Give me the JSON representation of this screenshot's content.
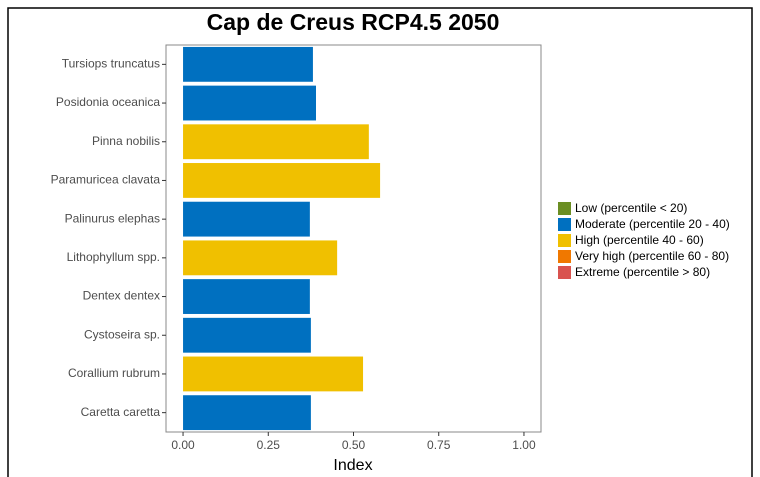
{
  "chart_data": {
    "type": "bar",
    "orientation": "horizontal",
    "title": "Cap de Creus RCP4.5 2050",
    "x_label": "Index",
    "categories": [
      "Tursiops truncatus",
      "Posidonia oceanica",
      "Pinna nobilis",
      "Paramuricea clavata",
      "Palinurus elephas",
      "Lithophyllum spp.",
      "Dentex dentex",
      "Cystoseira sp.",
      "Corallium rubrum",
      "Caretta caretta"
    ],
    "series": [
      {
        "name": "Low (percentile < 20)",
        "color": "#6b8e23",
        "values": [
          null,
          null,
          null,
          null,
          null,
          null,
          null,
          null,
          null,
          null
        ]
      },
      {
        "name": "Moderate (percentile 20 - 40)",
        "color": "#0070c0",
        "values": [
          0.381,
          0.39,
          null,
          null,
          0.372,
          null,
          0.372,
          0.375,
          null,
          0.375
        ]
      },
      {
        "name": "High (percentile 40 - 60)",
        "color": "#f0c000",
        "values": [
          null,
          null,
          0.545,
          0.578,
          null,
          0.452,
          null,
          null,
          0.528,
          null
        ]
      },
      {
        "name": "Very high (percentile 60 - 80)",
        "color": "#f07800",
        "values": [
          null,
          null,
          null,
          null,
          null,
          null,
          null,
          null,
          null,
          null
        ]
      },
      {
        "name": "Extreme (percentile > 80)",
        "color": "#d9534f",
        "values": [
          null,
          null,
          null,
          null,
          null,
          null,
          null,
          null,
          null,
          null
        ]
      }
    ],
    "xlim": [
      -0.05,
      1.05
    ],
    "xticks": [
      {
        "value": 0,
        "label": "0.00"
      },
      {
        "value": 0.25,
        "label": "0.25"
      },
      {
        "value": 0.5,
        "label": "0.50"
      },
      {
        "value": 0.75,
        "label": "0.75"
      },
      {
        "value": 1,
        "label": "1.00"
      }
    ],
    "legend": "right"
  }
}
